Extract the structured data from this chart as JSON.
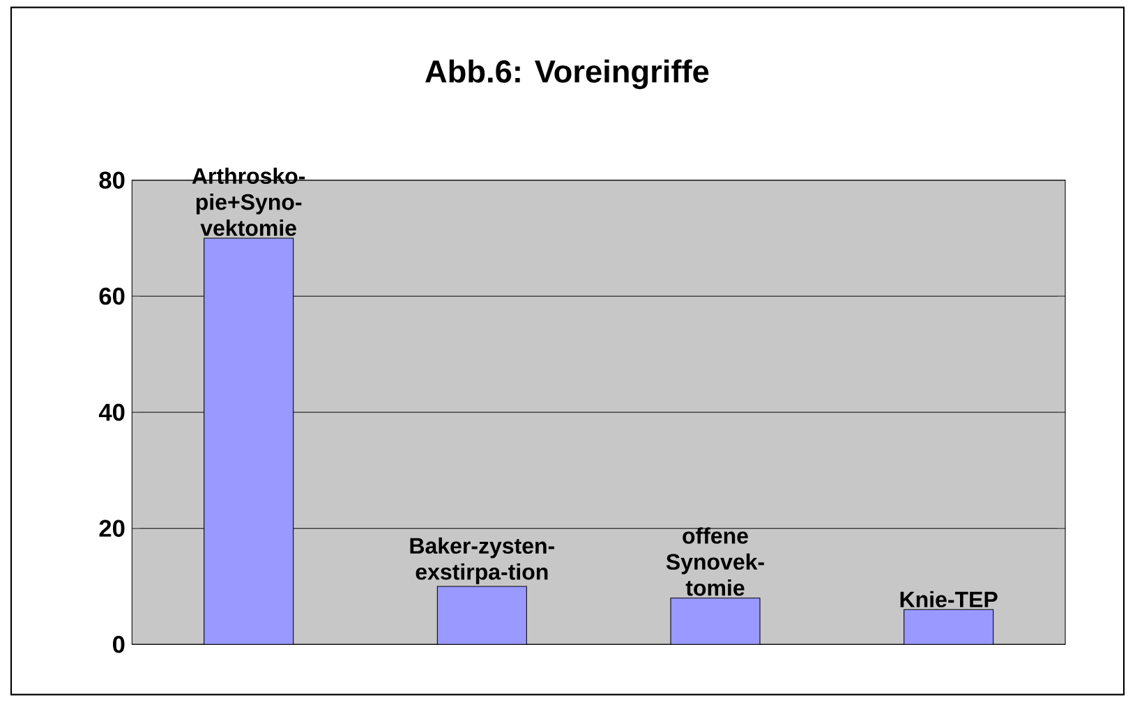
{
  "chart_data": {
    "type": "bar",
    "title": "Abb.6: Voreingriffe",
    "categories": [
      "Arthrosko-pie+Syno-vektomie",
      "Baker-zysten-exstirpa-tion",
      "offene Synovek-tomie",
      "Knie-TEP"
    ],
    "values": [
      70,
      10,
      8,
      6
    ],
    "color": "#9999ff",
    "ylim": [
      0,
      80
    ],
    "yticks": [
      0,
      20,
      40,
      60,
      80
    ],
    "grid": "y"
  }
}
